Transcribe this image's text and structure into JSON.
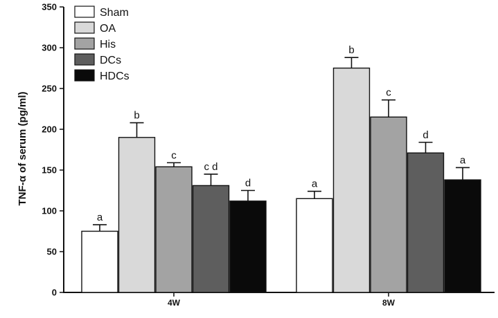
{
  "chart_data": {
    "type": "bar",
    "title": "",
    "xlabel": "",
    "ylabel": "TNF-α of serum (pg/ml)",
    "ylim": [
      0,
      350
    ],
    "yticks": [
      0,
      50,
      100,
      150,
      200,
      250,
      300,
      350
    ],
    "grid": false,
    "legend_position": "top-left",
    "categories": [
      "4W",
      "8W"
    ],
    "series": [
      {
        "name": "Sham",
        "color": "#ffffff",
        "values": [
          75,
          115
        ],
        "errors": [
          8,
          9
        ],
        "labels": [
          "a",
          "a"
        ]
      },
      {
        "name": "OA",
        "color": "#d9d9d9",
        "values": [
          190,
          275
        ],
        "errors": [
          18,
          13
        ],
        "labels": [
          "b",
          "b"
        ]
      },
      {
        "name": "His",
        "color": "#a3a3a3",
        "values": [
          154,
          215
        ],
        "errors": [
          5,
          21
        ],
        "labels": [
          "c",
          "c"
        ]
      },
      {
        "name": "DCs",
        "color": "#5e5e5e",
        "values": [
          131,
          171
        ],
        "errors": [
          14,
          13
        ],
        "labels": [
          "c d",
          "d"
        ]
      },
      {
        "name": "HDCs",
        "color": "#0a0a0a",
        "values": [
          112,
          138
        ],
        "errors": [
          13,
          15
        ],
        "labels": [
          "d",
          "a"
        ]
      }
    ]
  }
}
